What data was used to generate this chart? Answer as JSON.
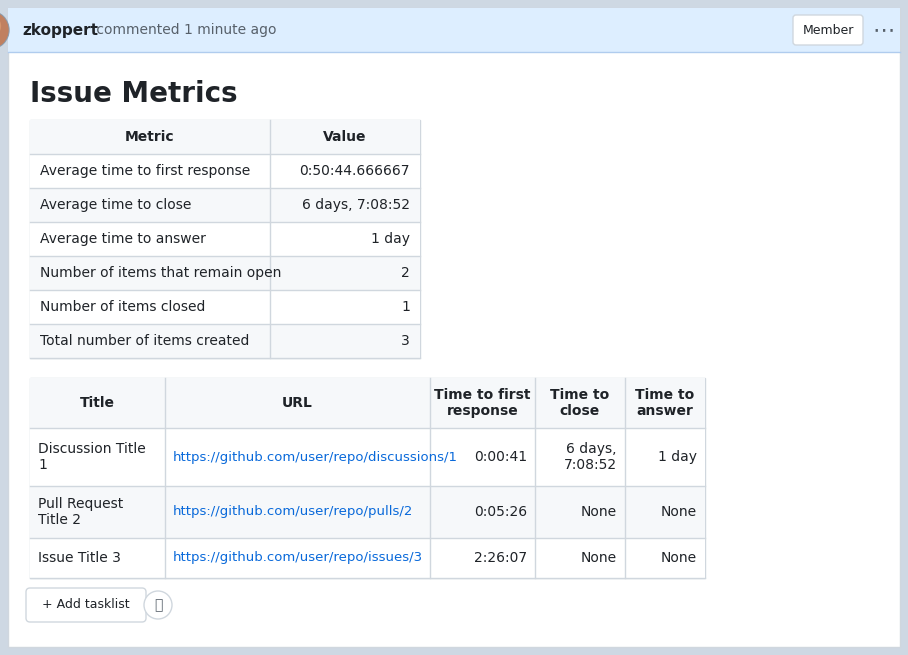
{
  "bg_color": "#f6f8fa",
  "header_bar_color": "#ddeeff",
  "header_bar_border": "#b0ccee",
  "username": "zkoppert",
  "header_text": " commented 1 minute ago",
  "member_label": "Member",
  "title": "Issue Metrics",
  "table1_headers": [
    "Metric",
    "Value"
  ],
  "table1_rows": [
    [
      "Average time to first response",
      "0:50:44.666667"
    ],
    [
      "Average time to close",
      "6 days, 7:08:52"
    ],
    [
      "Average time to answer",
      "1 day"
    ],
    [
      "Number of items that remain open",
      "2"
    ],
    [
      "Number of items closed",
      "1"
    ],
    [
      "Total number of items created",
      "3"
    ]
  ],
  "table2_headers": [
    "Title",
    "URL",
    "Time to first\nresponse",
    "Time to\nclose",
    "Time to\nanswer"
  ],
  "table2_rows": [
    [
      "Discussion Title\n1",
      "https://github.com/user/repo/discussions/1",
      "0:00:41",
      "6 days,\n7:08:52",
      "1 day"
    ],
    [
      "Pull Request\nTitle 2",
      "https://github.com/user/repo/pulls/2",
      "0:05:26",
      "None",
      "None"
    ],
    [
      "Issue Title 3",
      "https://github.com/user/repo/issues/3",
      "2:26:07",
      "None",
      "None"
    ]
  ],
  "link_color": "#0969da",
  "table_border_color": "#d0d7de",
  "header_row_bg": "#f6f8fa",
  "alt_row_bg": "#f6f8fa",
  "normal_row_bg": "#ffffff",
  "text_color": "#1f2328",
  "header_bg": "#ddeeff",
  "outer_bg": "#ced8e3"
}
